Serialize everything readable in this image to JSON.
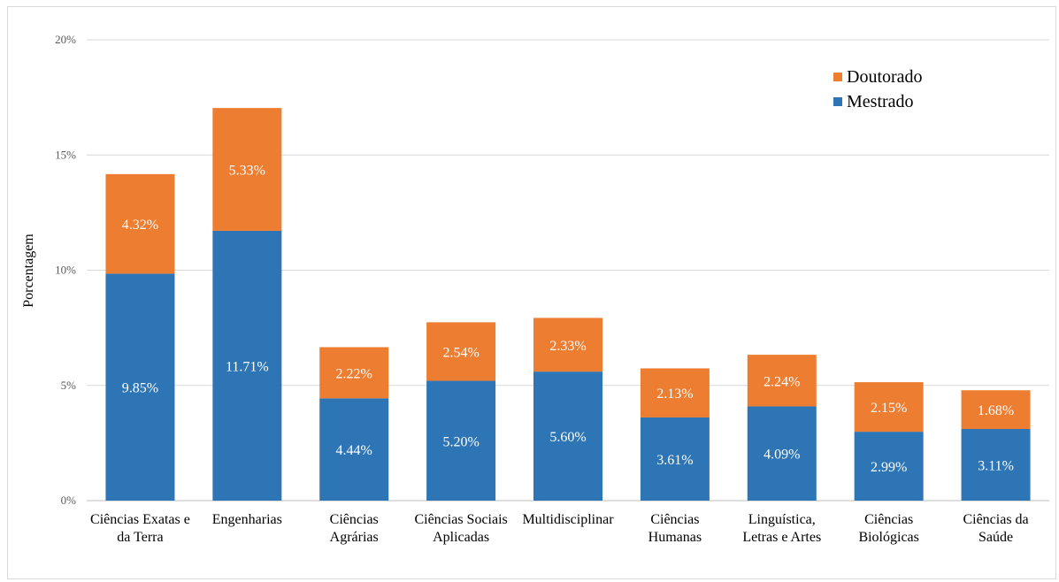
{
  "chart_data": {
    "type": "bar",
    "stacked": true,
    "ylabel": "Porcentagem",
    "xlabel": "",
    "ylim": [
      0,
      20
    ],
    "yticks": [
      "0%",
      "5%",
      "10%",
      "15%",
      "20%"
    ],
    "grid": true,
    "legend_position": "top-right",
    "categories": [
      [
        "Ciências Exatas e",
        "da Terra"
      ],
      [
        "Engenharias"
      ],
      [
        "Ciências",
        "Agrárias"
      ],
      [
        "Ciências Sociais",
        "Aplicadas"
      ],
      [
        "Multidisciplinar"
      ],
      [
        "Ciências",
        "Humanas"
      ],
      [
        "Linguística,",
        "Letras e Artes"
      ],
      [
        "Ciências",
        "Biológicas"
      ],
      [
        "Ciências da",
        "Saúde"
      ]
    ],
    "series": [
      {
        "name": "Mestrado",
        "color": "#2e75b6",
        "values": [
          9.85,
          11.71,
          4.44,
          5.2,
          5.6,
          3.61,
          4.09,
          2.99,
          3.11
        ],
        "labels": [
          "9.85%",
          "11.71%",
          "4.44%",
          "5.20%",
          "5.60%",
          "3.61%",
          "4.09%",
          "2.99%",
          "3.11%"
        ]
      },
      {
        "name": "Doutorado",
        "color": "#ed7d31",
        "values": [
          4.32,
          5.33,
          2.22,
          2.54,
          2.33,
          2.13,
          2.24,
          2.15,
          1.68
        ],
        "labels": [
          "4.32%",
          "5.33%",
          "2.22%",
          "2.54%",
          "2.33%",
          "2.13%",
          "2.24%",
          "2.15%",
          "1.68%"
        ]
      }
    ]
  }
}
